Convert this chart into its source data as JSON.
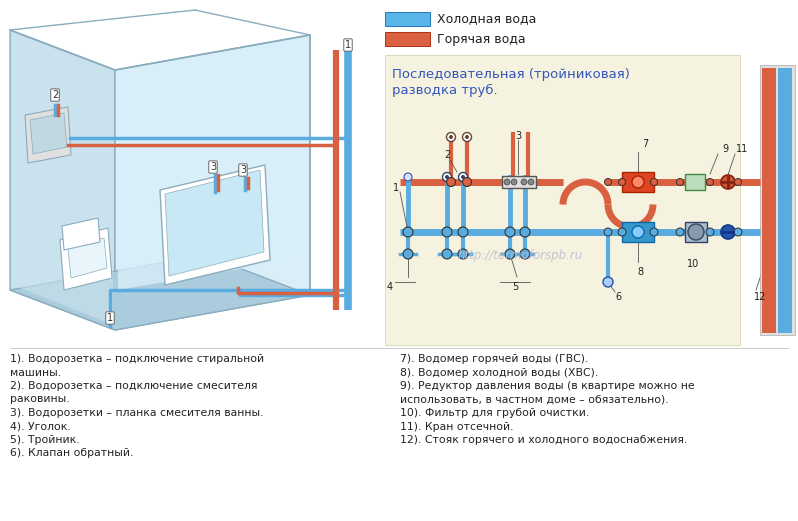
{
  "title_line1": "Последовательная (тройниковая)",
  "title_line2": "разводка труб.",
  "legend_cold": "Холодная вода",
  "legend_hot": "Горячая вода",
  "cold_color": "#5aace0",
  "hot_color": "#d96040",
  "bg_color": "#ffffff",
  "schema_bg": "#f5f3e0",
  "room_wall_color": "#c0dce8",
  "room_floor_color": "#a8ccd8",
  "watermark": "http://termoforspb.ru",
  "left_notes": [
    "1). Водорозетка – подключение стиральной\nмашины.",
    "2). Водорозетка – подключение смесителя\nраковины.",
    "3). Водорозетки – планка смесителя ванны.",
    "4). Уголок.",
    "5). Тройник.",
    "6). Клапан обратный."
  ],
  "right_notes": [
    "7). Водомер горячей воды (ГВС).",
    "8). Водомер холодной воды (ХВС).",
    "9). Редуктор давления воды (в квартире можно не\nиспользовать, в частном доме – обязательно).",
    "10). Фильтр для грубой очистки.",
    "11). Кран отсечной.",
    "12). Стояк горячего и холодного водоснабжения."
  ]
}
